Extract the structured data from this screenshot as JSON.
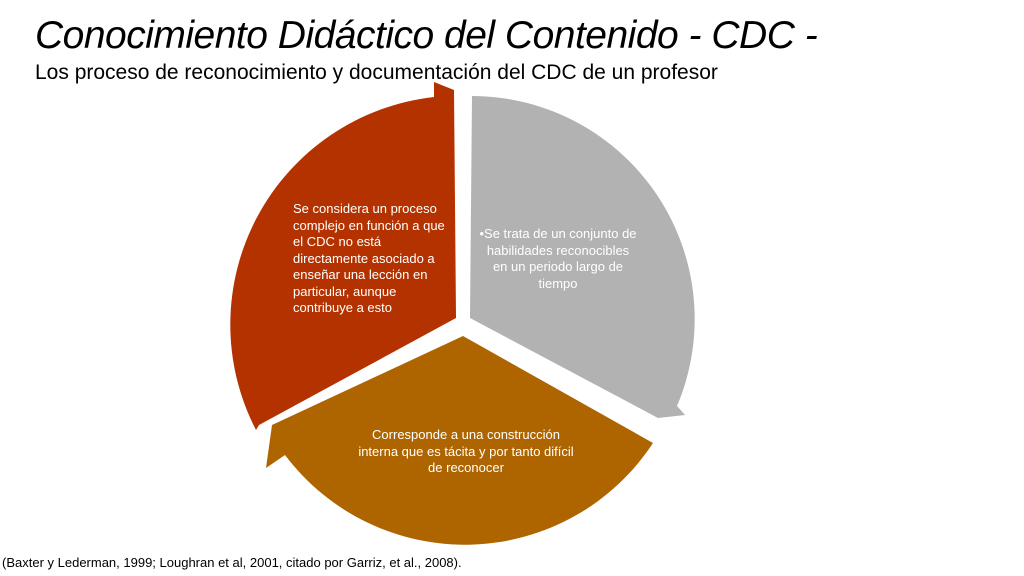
{
  "slide": {
    "title": "Conocimiento Didáctico del Contenido - CDC -",
    "subtitle": "Los proceso de reconocimiento y documentación del CDC de un profesor",
    "citation": "(Baxter y Lederman, 1999; Loughran et al, 2001, citado por Garriz, et al., 2008)."
  },
  "cycle": {
    "segments": [
      {
        "id": "left",
        "color": "#B33200",
        "text": "Se considera un proceso complejo  en función a que el CDC no está directamente asociado a enseñar una lección en particular, aunque contribuye a esto"
      },
      {
        "id": "right",
        "color": "#B2B2B2",
        "text": "•Se trata de un conjunto de habilidades reconocibles en un periodo largo de tiempo"
      },
      {
        "id": "bottom",
        "color": "#AE6500",
        "text": "Corresponde a una construcción interna que es tácita y por tanto difícil de reconocer"
      }
    ]
  }
}
